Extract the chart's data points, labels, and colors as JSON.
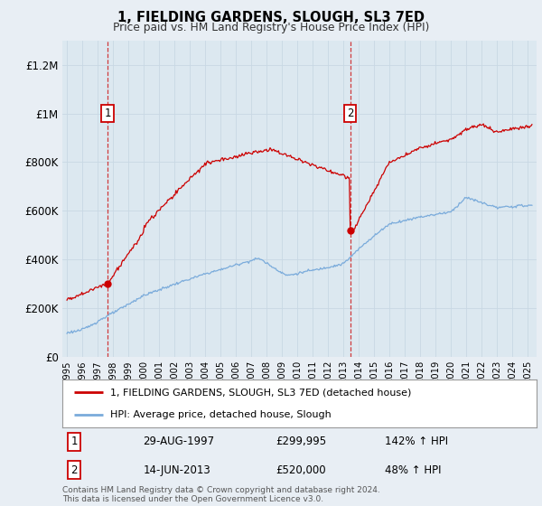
{
  "title": "1, FIELDING GARDENS, SLOUGH, SL3 7ED",
  "subtitle": "Price paid vs. HM Land Registry's House Price Index (HPI)",
  "legend_line1": "1, FIELDING GARDENS, SLOUGH, SL3 7ED (detached house)",
  "legend_line2": "HPI: Average price, detached house, Slough",
  "annotation1_date": "29-AUG-1997",
  "annotation1_price": "£299,995",
  "annotation1_hpi": "142% ↑ HPI",
  "annotation1_year": 1997.65,
  "annotation1_value": 299995,
  "annotation2_date": "14-JUN-2013",
  "annotation2_price": "£520,000",
  "annotation2_hpi": "48% ↑ HPI",
  "annotation2_year": 2013.45,
  "annotation2_value": 520000,
  "property_color": "#cc0000",
  "hpi_color": "#7aabdb",
  "background_color": "#e8eef4",
  "plot_bg_color": "#dce8f0",
  "footer": "Contains HM Land Registry data © Crown copyright and database right 2024.\nThis data is licensed under the Open Government Licence v3.0.",
  "ylim": [
    0,
    1300000
  ],
  "yticks": [
    0,
    200000,
    400000,
    600000,
    800000,
    1000000,
    1200000
  ],
  "ytick_labels": [
    "£0",
    "£200K",
    "£400K",
    "£600K",
    "£800K",
    "£1M",
    "£1.2M"
  ]
}
